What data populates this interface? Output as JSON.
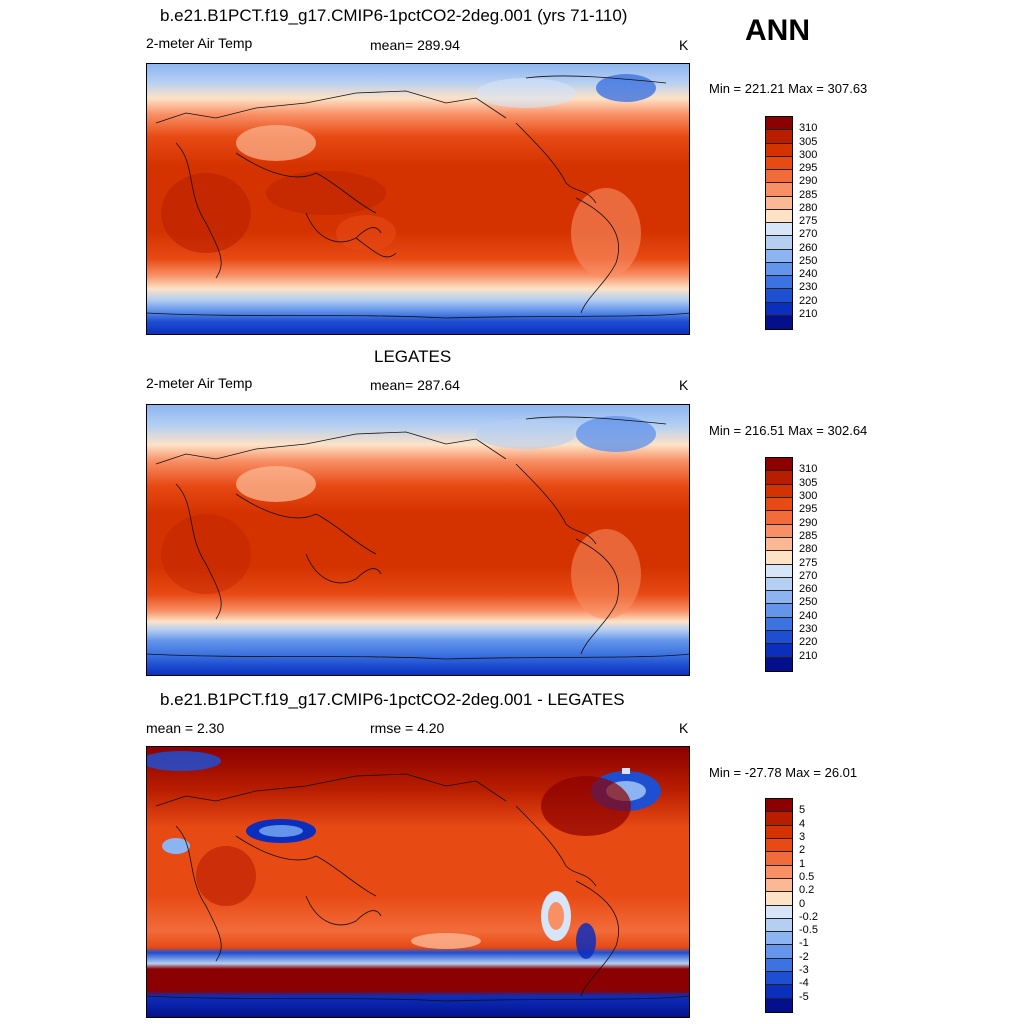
{
  "season": "ANN",
  "panels": [
    {
      "title": "b.e21.B1PCT.f19_g17.CMIP6-1pctCO2-2deg.001 (yrs 71-110)",
      "left_label": "2-meter Air Temp",
      "center_label": "mean= 289.94",
      "units": "K",
      "minmax": "Min = 221.21 Max = 307.63",
      "colorbar": {
        "labels": [
          "310",
          "305",
          "300",
          "295",
          "290",
          "285",
          "280",
          "275",
          "270",
          "260",
          "250",
          "240",
          "230",
          "220",
          "210"
        ],
        "colors": [
          "#8b0000",
          "#b81d00",
          "#d43300",
          "#e84a14",
          "#f26b3a",
          "#f88f65",
          "#fbb894",
          "#fde2c6",
          "#d6e5f7",
          "#b5cff2",
          "#8cb4f0",
          "#6495eb",
          "#3d73e0",
          "#1e4fd1",
          "#0c2ebc",
          "#050f8c"
        ]
      }
    },
    {
      "title": "LEGATES",
      "left_label": "2-meter Air Temp",
      "center_label": "mean= 287.64",
      "units": "K",
      "minmax": "Min = 216.51 Max = 302.64",
      "colorbar": {
        "labels": [
          "310",
          "305",
          "300",
          "295",
          "290",
          "285",
          "280",
          "275",
          "270",
          "260",
          "250",
          "240",
          "230",
          "220",
          "210"
        ],
        "colors": [
          "#8b0000",
          "#b81d00",
          "#d43300",
          "#e84a14",
          "#f26b3a",
          "#f88f65",
          "#fbb894",
          "#fde2c6",
          "#d6e5f7",
          "#b5cff2",
          "#8cb4f0",
          "#6495eb",
          "#3d73e0",
          "#1e4fd1",
          "#0c2ebc",
          "#050f8c"
        ]
      }
    },
    {
      "title": "b.e21.B1PCT.f19_g17.CMIP6-1pctCO2-2deg.001 - LEGATES",
      "left_label": "mean =   2.30",
      "center_label": "rmse =   4.20",
      "units": "K",
      "minmax": "Min = -27.78 Max =  26.01",
      "colorbar": {
        "labels": [
          "5",
          "4",
          "3",
          "2",
          "1",
          "0.5",
          "0.2",
          "0",
          "-0.2",
          "-0.5",
          "-1",
          "-2",
          "-3",
          "-4",
          "-5"
        ],
        "colors": [
          "#8b0000",
          "#b81d00",
          "#d43300",
          "#e84a14",
          "#f26b3a",
          "#f88f65",
          "#fbb894",
          "#fde2c6",
          "#d6e5f7",
          "#b5cff2",
          "#8cb4f0",
          "#6495eb",
          "#3d73e0",
          "#1e4fd1",
          "#0c2ebc",
          "#050f8c"
        ]
      }
    }
  ]
}
